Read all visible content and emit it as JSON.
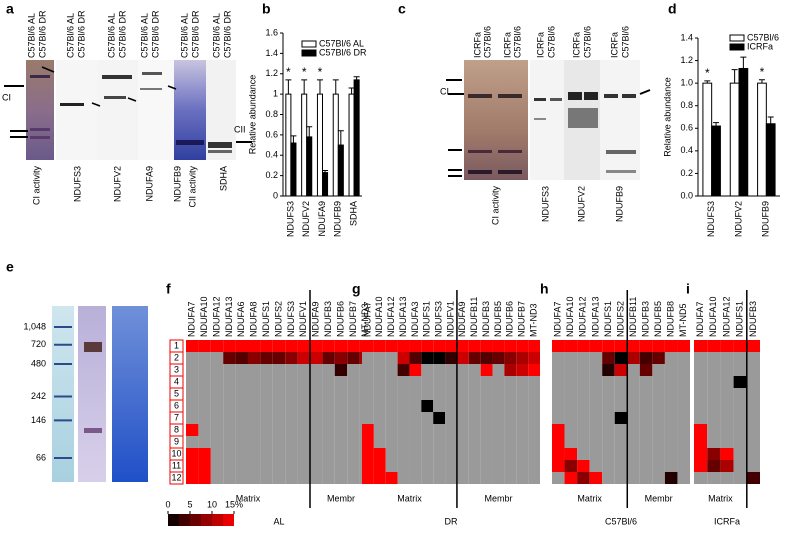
{
  "panel_labels": [
    "a",
    "b",
    "c",
    "d",
    "e",
    "f",
    "g",
    "h",
    "i"
  ],
  "gel_a": {
    "lanes": [
      "C57Bl/6 AL",
      "C57Bl/6 DR"
    ],
    "blots": [
      "CI activity",
      "NDUFS3",
      "NDUFV2",
      "NDUFA9",
      "NDUFB9",
      "CII activity",
      "SDHA"
    ],
    "markers": [
      "CI",
      "CII"
    ]
  },
  "gel_c": {
    "lanes": [
      "ICRFa",
      "C57Bl/6"
    ],
    "blots": [
      "CI activity",
      "NDUFS3",
      "NDUFV2",
      "NDUFB9"
    ],
    "markers": [
      "CI"
    ]
  },
  "gel_e": {
    "ladder": [
      {
        "value": 1048,
        "label": "1,048"
      },
      720,
      480,
      242,
      146,
      66
    ]
  },
  "colorscale": {
    "ticks": [
      0,
      5,
      10,
      {
        "value": 15,
        "label": "15%"
      }
    ],
    "colors": [
      "#000000",
      "#ff0000"
    ],
    "null_color": "#9a9a9a"
  },
  "chart_data": [
    {
      "type": "bar",
      "ylabel": "Relative abundance",
      "categories": [
        "NDUFS3",
        "NDUFV2",
        "NDUFA9",
        "NDUFB9",
        "SDHA"
      ],
      "series": [
        {
          "name": "C57Bl/6 AL",
          "color": "#ffffff",
          "values": [
            1,
            1,
            1,
            1,
            1
          ],
          "errors": [
            0.14,
            0.14,
            0.14,
            0.14,
            0.06
          ]
        },
        {
          "name": "C57Bl/6 DR",
          "color": "#000000",
          "values": [
            0.52,
            0.58,
            0.23,
            0.5,
            1.14
          ],
          "errors": [
            0.07,
            0.1,
            0.02,
            0.14,
            0.03
          ]
        }
      ],
      "significance": [
        "*",
        "*",
        "*",
        null,
        null
      ],
      "ylim": [
        0,
        1.6
      ],
      "yticks": [
        0,
        0.2,
        0.4,
        0.6,
        0.8,
        1,
        1.2,
        1.4,
        1.6
      ]
    },
    {
      "type": "bar",
      "ylabel": "Relative abundance",
      "categories": [
        "NDUFS3",
        "NDUFV2",
        "NDUFB9"
      ],
      "series": [
        {
          "name": "C57Bl/6",
          "color": "#ffffff",
          "values": [
            1,
            1,
            1
          ],
          "errors": [
            0.02,
            0.12,
            0.03
          ]
        },
        {
          "name": "ICRFa",
          "color": "#000000",
          "values": [
            0.62,
            1.13,
            0.64
          ],
          "errors": [
            0.03,
            0.1,
            0.06
          ]
        }
      ],
      "significance": [
        "*",
        null,
        "*"
      ],
      "ylim": [
        0,
        1.4
      ],
      "yticks": [
        {
          "value": 0,
          "label": "0.0"
        },
        0.2,
        0.4,
        0.6,
        0.8,
        {
          "value": 1,
          "label": "1.0"
        },
        1.2,
        1.4
      ]
    },
    {
      "type": "heatmap",
      "title": "AL",
      "rows": [
        1,
        2,
        3,
        4,
        5,
        6,
        7,
        8,
        9,
        10,
        11,
        12
      ],
      "groups": [
        {
          "name": "Matrix",
          "columns": [
            "NDUFA7",
            "NDUFA10",
            "NDUFA12",
            "NDUFA13",
            "NDUFA6",
            "NDUFA8",
            "NDUFS1",
            "NDUFS2",
            "NDUFS3",
            "NDUFV1"
          ]
        },
        {
          "name": "Membr",
          "columns": [
            "NDUFA9",
            "NDUFB3",
            "NDUFB6",
            "NDUFB7",
            "MT-ND3"
          ]
        }
      ],
      "values": [
        [
          15,
          15,
          15,
          15,
          15,
          15,
          15,
          15,
          15,
          15,
          15,
          15,
          15,
          15,
          15
        ],
        [
          null,
          null,
          null,
          6,
          5,
          8,
          6,
          6,
          8,
          12,
          12,
          6,
          8,
          6,
          10
        ],
        [
          null,
          null,
          null,
          null,
          null,
          null,
          null,
          null,
          null,
          null,
          null,
          null,
          3,
          null,
          null
        ],
        [
          null,
          null,
          null,
          null,
          null,
          null,
          null,
          null,
          null,
          null,
          null,
          null,
          null,
          null,
          null
        ],
        [
          null,
          null,
          null,
          null,
          null,
          null,
          null,
          null,
          null,
          null,
          null,
          null,
          null,
          null,
          null
        ],
        [
          null,
          null,
          null,
          null,
          null,
          null,
          null,
          null,
          null,
          null,
          null,
          null,
          null,
          null,
          null
        ],
        [
          null,
          null,
          null,
          null,
          null,
          null,
          null,
          null,
          null,
          null,
          null,
          null,
          null,
          null,
          null
        ],
        [
          15,
          null,
          null,
          null,
          null,
          null,
          null,
          null,
          null,
          null,
          null,
          null,
          null,
          null,
          null
        ],
        [
          null,
          null,
          null,
          null,
          null,
          null,
          null,
          null,
          null,
          null,
          null,
          null,
          null,
          null,
          null
        ],
        [
          15,
          15,
          null,
          null,
          null,
          null,
          null,
          null,
          null,
          null,
          null,
          null,
          null,
          null,
          null
        ],
        [
          15,
          15,
          null,
          null,
          null,
          null,
          null,
          null,
          null,
          null,
          null,
          null,
          null,
          null,
          null
        ],
        [
          15,
          15,
          null,
          null,
          null,
          null,
          null,
          null,
          null,
          null,
          null,
          null,
          null,
          null,
          null
        ]
      ]
    },
    {
      "type": "heatmap",
      "title": "DR",
      "groups": [
        {
          "name": "Matrix",
          "columns": [
            "NDUFA7",
            "NDUFA10",
            "NDUFA12",
            "NDUFA13",
            "NDUFA3",
            "NDUFS1",
            "NDUFS3",
            "NDUFV1"
          ]
        },
        {
          "name": "Membr",
          "columns": [
            "NDUFA9",
            "NDUFB11",
            "NDUFB3",
            "NDUFB5",
            "NDUFB6",
            "NDUFB7",
            "MT-ND3"
          ]
        }
      ],
      "values": [
        [
          15,
          15,
          15,
          15,
          15,
          15,
          15,
          15,
          15,
          15,
          15,
          15,
          15,
          15,
          15
        ],
        [
          null,
          null,
          null,
          12,
          5,
          0,
          0,
          3,
          12,
          6,
          5,
          6,
          8,
          10,
          12
        ],
        [
          null,
          null,
          null,
          4,
          15,
          null,
          null,
          null,
          null,
          null,
          15,
          null,
          10,
          12,
          15
        ],
        [
          null,
          null,
          null,
          null,
          null,
          null,
          null,
          null,
          null,
          null,
          null,
          null,
          null,
          null,
          null
        ],
        [
          null,
          null,
          null,
          null,
          null,
          null,
          null,
          null,
          null,
          null,
          null,
          null,
          null,
          null,
          null
        ],
        [
          null,
          null,
          null,
          null,
          null,
          0,
          null,
          null,
          null,
          null,
          null,
          null,
          null,
          null,
          null
        ],
        [
          null,
          null,
          null,
          null,
          null,
          null,
          0,
          null,
          null,
          null,
          null,
          null,
          null,
          null,
          null
        ],
        [
          15,
          null,
          null,
          null,
          null,
          null,
          null,
          null,
          null,
          null,
          null,
          null,
          null,
          null,
          null
        ],
        [
          15,
          null,
          null,
          null,
          null,
          null,
          null,
          null,
          null,
          null,
          null,
          null,
          null,
          null,
          null
        ],
        [
          15,
          15,
          null,
          null,
          null,
          null,
          null,
          null,
          null,
          null,
          null,
          null,
          null,
          null,
          null
        ],
        [
          15,
          15,
          null,
          null,
          null,
          null,
          null,
          null,
          null,
          null,
          null,
          null,
          null,
          null,
          null
        ],
        [
          15,
          15,
          15,
          null,
          null,
          null,
          null,
          null,
          null,
          null,
          null,
          null,
          null,
          null,
          null
        ]
      ]
    },
    {
      "type": "heatmap",
      "title": "C57Bl/6",
      "groups": [
        {
          "name": "Matrix",
          "columns": [
            "NDUFA7",
            "NDUFA10",
            "NDUFA12",
            "NDUFA13",
            "NDUFS1",
            "NDUFS2"
          ]
        },
        {
          "name": "Membr",
          "columns": [
            "NDUFB11",
            "NDUFB3",
            "NDUFB5",
            "NDUFB8",
            "MT-ND5"
          ]
        }
      ],
      "values": [
        [
          15,
          15,
          15,
          15,
          15,
          15,
          15,
          15,
          15,
          15,
          15
        ],
        [
          null,
          null,
          null,
          null,
          6,
          0,
          10,
          4,
          6,
          null,
          null
        ],
        [
          null,
          null,
          null,
          null,
          2,
          12,
          null,
          6,
          null,
          null,
          null
        ],
        [
          null,
          null,
          null,
          null,
          null,
          null,
          null,
          null,
          null,
          null,
          null
        ],
        [
          null,
          null,
          null,
          null,
          null,
          null,
          null,
          null,
          null,
          null,
          null
        ],
        [
          null,
          null,
          null,
          null,
          null,
          null,
          null,
          null,
          null,
          null,
          null
        ],
        [
          null,
          null,
          null,
          null,
          null,
          0,
          null,
          null,
          null,
          null,
          null
        ],
        [
          15,
          null,
          null,
          null,
          null,
          null,
          null,
          null,
          null,
          null,
          null
        ],
        [
          15,
          null,
          null,
          null,
          null,
          null,
          null,
          null,
          null,
          null,
          null
        ],
        [
          15,
          15,
          null,
          null,
          null,
          null,
          null,
          null,
          null,
          null,
          null
        ],
        [
          15,
          8,
          15,
          null,
          null,
          null,
          null,
          null,
          null,
          null,
          null
        ],
        [
          null,
          15,
          8,
          15,
          null,
          null,
          null,
          null,
          null,
          2,
          null
        ]
      ]
    },
    {
      "type": "heatmap",
      "title": "ICRFa",
      "groups": [
        {
          "name": "Matrix",
          "columns": [
            "NDUFA7",
            "NDUFA10",
            "NDUFA12",
            "NDUFS1"
          ]
        },
        {
          "name": null,
          "columns": [
            "NDUFB3"
          ]
        }
      ],
      "values": [
        [
          15,
          15,
          15,
          15,
          15
        ],
        [
          null,
          null,
          null,
          null,
          null
        ],
        [
          null,
          null,
          null,
          null,
          null
        ],
        [
          null,
          null,
          null,
          0,
          null
        ],
        [
          null,
          null,
          null,
          null,
          null
        ],
        [
          null,
          null,
          null,
          null,
          null
        ],
        [
          null,
          null,
          null,
          null,
          null
        ],
        [
          15,
          null,
          null,
          null,
          null
        ],
        [
          15,
          null,
          null,
          null,
          null
        ],
        [
          15,
          8,
          15,
          null,
          null
        ],
        [
          15,
          6,
          10,
          null,
          null
        ],
        [
          null,
          null,
          null,
          null,
          4
        ]
      ]
    }
  ]
}
